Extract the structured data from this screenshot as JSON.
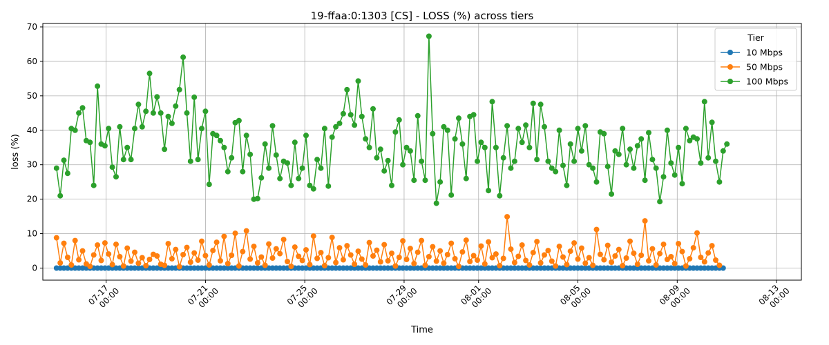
{
  "chart_data": {
    "type": "line",
    "title": "19-ffaa:0:1303 [CS] - LOSS (%) across tiers",
    "xlabel": "Time",
    "ylabel": "loss (%)",
    "x_range_days": [
      -1.55,
      29.0
    ],
    "ylim": [
      -3.5,
      71
    ],
    "grid": true,
    "legend": {
      "title": "Tier",
      "placement": "top-right"
    },
    "x_ticks": [
      {
        "day": 1,
        "line1": "07-17",
        "line2": "00:00"
      },
      {
        "day": 5,
        "line1": "07-21",
        "line2": "00:00"
      },
      {
        "day": 9,
        "line1": "07-25",
        "line2": "00:00"
      },
      {
        "day": 13,
        "line1": "07-29",
        "line2": "00:00"
      },
      {
        "day": 16,
        "line1": "08-01",
        "line2": "00:00"
      },
      {
        "day": 20,
        "line1": "08-05",
        "line2": "00:00"
      },
      {
        "day": 24,
        "line1": "08-09",
        "line2": "00:00"
      },
      {
        "day": 28,
        "line1": "08-13",
        "line2": "00:00"
      }
    ],
    "y_ticks": [
      0,
      10,
      20,
      30,
      40,
      50,
      60,
      70
    ],
    "series": [
      {
        "name": "10 Mbps",
        "color": "#1f77b4",
        "sample_interval_days": 0.15,
        "start_day": -1.0,
        "values": [
          0,
          0,
          0,
          0,
          0,
          0,
          0,
          0,
          0,
          0,
          0,
          0,
          0,
          0,
          0,
          0,
          0,
          0,
          0,
          0,
          0,
          0,
          0,
          0,
          0,
          0,
          0,
          0,
          0,
          0,
          0,
          0,
          0,
          0,
          0,
          0,
          0,
          0,
          0,
          0,
          0,
          0,
          0,
          0,
          0,
          0,
          0,
          0,
          0,
          0,
          0,
          0,
          0,
          0,
          0,
          0,
          0,
          0,
          0,
          0,
          0,
          0,
          0,
          0,
          0,
          0,
          0,
          0,
          0,
          0,
          0,
          0,
          0,
          0,
          0,
          0,
          0,
          0,
          0,
          0,
          0,
          0,
          0,
          0,
          0,
          0,
          0,
          0,
          0,
          0,
          0,
          0,
          0,
          0,
          0,
          0,
          0,
          0,
          0,
          0,
          0,
          0,
          0,
          0,
          0,
          0,
          0,
          0,
          0,
          0,
          0,
          0,
          0,
          0,
          0,
          0,
          0,
          0,
          0,
          0,
          0,
          0,
          0,
          0,
          0,
          0,
          0,
          0,
          0,
          0,
          0,
          0,
          0,
          0,
          0,
          0,
          0,
          0,
          0,
          0,
          0,
          0,
          0,
          0,
          0,
          0,
          0,
          0,
          0,
          0,
          0,
          0,
          0,
          0,
          0,
          0,
          0,
          0,
          0,
          0,
          0,
          0,
          0,
          0,
          0,
          0,
          0,
          0,
          0,
          0,
          0,
          0,
          0,
          0,
          0,
          0,
          0,
          0,
          0,
          0
        ]
      },
      {
        "name": "50 Mbps",
        "color": "#ff7f0e",
        "sample_interval_days": 0.15,
        "start_day": -1.0,
        "values": [
          8.8,
          1.5,
          7.2,
          3.1,
          0.9,
          8.0,
          2.4,
          5.0,
          1.2,
          0.5,
          3.8,
          6.7,
          2.2,
          7.3,
          4.1,
          1.0,
          6.9,
          3.3,
          0.6,
          5.8,
          2.0,
          4.6,
          1.4,
          3.0,
          0.7,
          2.5,
          4.0,
          3.5,
          1.1,
          0.8,
          7.1,
          2.7,
          5.4,
          0.4,
          3.9,
          6.0,
          1.7,
          4.4,
          2.3,
          7.8,
          3.6,
          0.9,
          5.1,
          7.5,
          2.1,
          9.2,
          1.3,
          3.7,
          10.1,
          0.6,
          4.8,
          10.8,
          2.6,
          6.3,
          1.5,
          3.2,
          0.8,
          7.0,
          2.9,
          5.6,
          4.2,
          8.3,
          1.9,
          0.5,
          6.1,
          3.4,
          2.2,
          5.3,
          1.0,
          9.3,
          2.8,
          4.5,
          0.7,
          3.0,
          8.9,
          1.6,
          5.9,
          2.4,
          6.5,
          3.8,
          1.1,
          4.9,
          2.6,
          0.9,
          7.4,
          3.5,
          5.2,
          1.8,
          6.8,
          2.1,
          4.3,
          0.6,
          3.1,
          7.9,
          2.5,
          5.7,
          1.3,
          4.6,
          8.0,
          0.8,
          3.3,
          6.2,
          2.0,
          5.0,
          1.4,
          3.9,
          7.2,
          2.7,
          0.5,
          4.7,
          8.1,
          1.9,
          3.6,
          2.3,
          6.4,
          1.2,
          7.6,
          3.0,
          4.1,
          0.7,
          2.8,
          14.9,
          5.5,
          1.6,
          3.4,
          6.7,
          2.2,
          0.9,
          4.5,
          7.7,
          1.5,
          3.8,
          5.1,
          2.0,
          0.6,
          6.3,
          3.2,
          1.0,
          4.9,
          7.3,
          2.6,
          5.8,
          1.4,
          3.0,
          0.8,
          11.2,
          4.0,
          2.4,
          6.6,
          1.7,
          3.5,
          5.4,
          0.7,
          2.9,
          7.8,
          4.3,
          1.1,
          3.7,
          13.7,
          2.1,
          5.6,
          0.9,
          4.2,
          6.9,
          2.5,
          3.3,
          1.3,
          7.1,
          4.8,
          0.6,
          2.7,
          5.9,
          10.2,
          3.1,
          1.8,
          4.4,
          6.5,
          2.3,
          0.8
        ]
      },
      {
        "name": "100 Mbps",
        "color": "#2ca02c",
        "sample_interval_days": 0.15,
        "start_day": -1.0,
        "values": [
          29,
          21,
          31.3,
          27.5,
          40.5,
          40,
          45,
          46.5,
          37,
          36.5,
          24,
          52.8,
          36,
          35.5,
          40.5,
          29.3,
          26.5,
          41,
          31.5,
          35,
          31.5,
          40.5,
          47.5,
          41,
          45.5,
          56.5,
          45,
          49.7,
          45,
          34.5,
          44,
          42,
          47,
          51.8,
          61.2,
          45,
          31,
          49.6,
          31.5,
          40.5,
          45.5,
          24.3,
          39,
          38.5,
          37,
          35,
          28,
          32,
          42.2,
          42.8,
          28,
          38.5,
          33,
          20,
          20.2,
          26.2,
          36,
          29,
          41.3,
          32.8,
          26,
          31,
          30.5,
          24,
          36.5,
          26,
          29,
          38.5,
          24,
          23,
          31.5,
          29,
          40.5,
          23.8,
          38,
          41,
          42,
          44.8,
          51.8,
          44.5,
          41.5,
          54.3,
          44,
          37.5,
          35,
          46.2,
          32,
          34.5,
          28.2,
          31.2,
          24,
          39.5,
          43,
          30,
          35,
          34,
          25.5,
          44.2,
          31,
          25.5,
          67.3,
          39,
          18.8,
          25,
          41,
          40,
          21.2,
          37.5,
          43.5,
          36,
          26,
          44,
          44.5,
          31,
          36.5,
          35,
          22.5,
          48.3,
          35,
          21,
          32,
          41.3,
          29,
          31,
          40.5,
          36.5,
          41.5,
          35,
          47.8,
          31.5,
          47.5,
          41,
          31,
          29,
          28,
          40,
          29.8,
          24,
          36,
          31,
          40.5,
          34,
          41.3,
          30,
          29,
          25,
          39.5,
          39,
          29.5,
          21.5,
          34,
          33,
          40.5,
          30,
          34.5,
          29,
          35.5,
          37.5,
          25.5,
          39.3,
          31.5,
          29,
          19.3,
          26.5,
          40,
          30.5,
          27,
          35,
          24.5,
          40.5,
          37,
          38,
          37.5,
          30.5,
          48.3,
          32,
          42.3,
          31,
          25,
          34,
          36
        ]
      }
    ]
  }
}
